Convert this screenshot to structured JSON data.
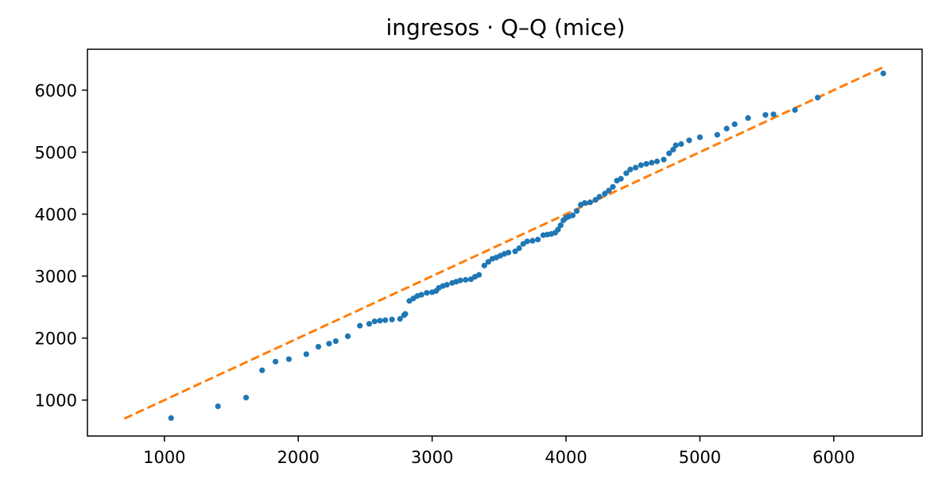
{
  "chart_data": {
    "type": "scatter",
    "title": "ingresos · Q–Q (mice)",
    "xlabel": "",
    "ylabel": "",
    "xlim": [
      425,
      6660
    ],
    "ylim": [
      420,
      6660
    ],
    "xticks": [
      1000,
      2000,
      3000,
      4000,
      5000,
      6000
    ],
    "yticks": [
      1000,
      2000,
      3000,
      4000,
      5000,
      6000
    ],
    "grid": false,
    "colors": {
      "points": "#1f77b4",
      "reference_line": "#ff7f0e"
    },
    "reference_line": {
      "x": [
        700,
        6370
      ],
      "y": [
        700,
        6370
      ],
      "style": "dashed"
    },
    "points": [
      [
        1050,
        710
      ],
      [
        1400,
        900
      ],
      [
        1610,
        1040
      ],
      [
        1730,
        1480
      ],
      [
        1830,
        1620
      ],
      [
        1930,
        1660
      ],
      [
        2060,
        1740
      ],
      [
        2150,
        1860
      ],
      [
        2230,
        1910
      ],
      [
        2280,
        1950
      ],
      [
        2370,
        2030
      ],
      [
        2460,
        2200
      ],
      [
        2530,
        2230
      ],
      [
        2570,
        2270
      ],
      [
        2610,
        2280
      ],
      [
        2650,
        2290
      ],
      [
        2700,
        2300
      ],
      [
        2760,
        2310
      ],
      [
        2790,
        2370
      ],
      [
        2800,
        2390
      ],
      [
        2830,
        2600
      ],
      [
        2860,
        2640
      ],
      [
        2890,
        2680
      ],
      [
        2920,
        2700
      ],
      [
        2960,
        2730
      ],
      [
        3000,
        2740
      ],
      [
        3030,
        2760
      ],
      [
        3050,
        2810
      ],
      [
        3080,
        2840
      ],
      [
        3110,
        2860
      ],
      [
        3150,
        2890
      ],
      [
        3180,
        2910
      ],
      [
        3210,
        2930
      ],
      [
        3250,
        2940
      ],
      [
        3290,
        2950
      ],
      [
        3320,
        2990
      ],
      [
        3350,
        3020
      ],
      [
        3390,
        3170
      ],
      [
        3420,
        3230
      ],
      [
        3450,
        3280
      ],
      [
        3480,
        3300
      ],
      [
        3510,
        3330
      ],
      [
        3540,
        3360
      ],
      [
        3570,
        3380
      ],
      [
        3620,
        3400
      ],
      [
        3650,
        3450
      ],
      [
        3680,
        3520
      ],
      [
        3710,
        3560
      ],
      [
        3750,
        3570
      ],
      [
        3790,
        3590
      ],
      [
        3830,
        3660
      ],
      [
        3860,
        3670
      ],
      [
        3890,
        3680
      ],
      [
        3920,
        3700
      ],
      [
        3940,
        3750
      ],
      [
        3960,
        3820
      ],
      [
        3980,
        3900
      ],
      [
        4000,
        3940
      ],
      [
        4020,
        3960
      ],
      [
        4050,
        3980
      ],
      [
        4080,
        4050
      ],
      [
        4110,
        4150
      ],
      [
        4140,
        4180
      ],
      [
        4180,
        4190
      ],
      [
        4220,
        4230
      ],
      [
        4250,
        4280
      ],
      [
        4290,
        4330
      ],
      [
        4320,
        4380
      ],
      [
        4350,
        4440
      ],
      [
        4380,
        4540
      ],
      [
        4410,
        4570
      ],
      [
        4450,
        4660
      ],
      [
        4480,
        4720
      ],
      [
        4520,
        4750
      ],
      [
        4560,
        4790
      ],
      [
        4600,
        4810
      ],
      [
        4640,
        4830
      ],
      [
        4680,
        4850
      ],
      [
        4730,
        4880
      ],
      [
        4770,
        4980
      ],
      [
        4800,
        5040
      ],
      [
        4820,
        5110
      ],
      [
        4860,
        5130
      ],
      [
        4920,
        5190
      ],
      [
        5000,
        5240
      ],
      [
        5130,
        5280
      ],
      [
        5200,
        5380
      ],
      [
        5260,
        5450
      ],
      [
        5360,
        5550
      ],
      [
        5490,
        5600
      ],
      [
        5550,
        5610
      ],
      [
        5710,
        5680
      ],
      [
        5880,
        5880
      ],
      [
        6370,
        6270
      ]
    ]
  }
}
